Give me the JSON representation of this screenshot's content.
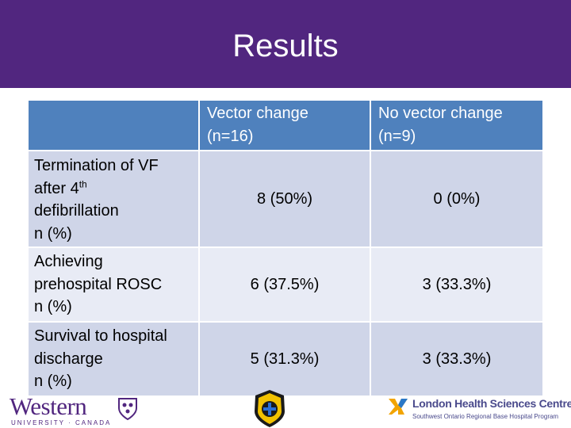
{
  "slide": {
    "title": "Results"
  },
  "table": {
    "headers": {
      "col1": [
        "Vector change",
        "(n=16)"
      ],
      "col2": [
        "No vector change",
        "(n=9)"
      ]
    },
    "rows": [
      {
        "label_lines": [
          "Termination of VF",
          "after 4",
          "th",
          "defibrillation",
          "n (%)"
        ],
        "vector": "8 (50%)",
        "no_vector": "0 (0%)"
      },
      {
        "label_lines": [
          "Achieving",
          "prehospital ROSC",
          "n (%)"
        ],
        "vector": "6 (37.5%)",
        "no_vector": "3 (33.3%)"
      },
      {
        "label_lines": [
          "Survival to hospital",
          "discharge",
          "n (%)"
        ],
        "vector": "5 (31.3%)",
        "no_vector": "3 (33.3%)"
      }
    ]
  },
  "logos": {
    "western": {
      "name": "Western",
      "sub": "UNIVERSITY · CANADA"
    },
    "lhsc": {
      "name": "London Health Sciences Centre",
      "sub": "Southwest Ontario Regional Base Hospital Program"
    }
  },
  "colors": {
    "banner": "#51267f",
    "header": "#4f81bd",
    "band_a": "#cfd5e8",
    "band_b": "#e8ebf5"
  }
}
